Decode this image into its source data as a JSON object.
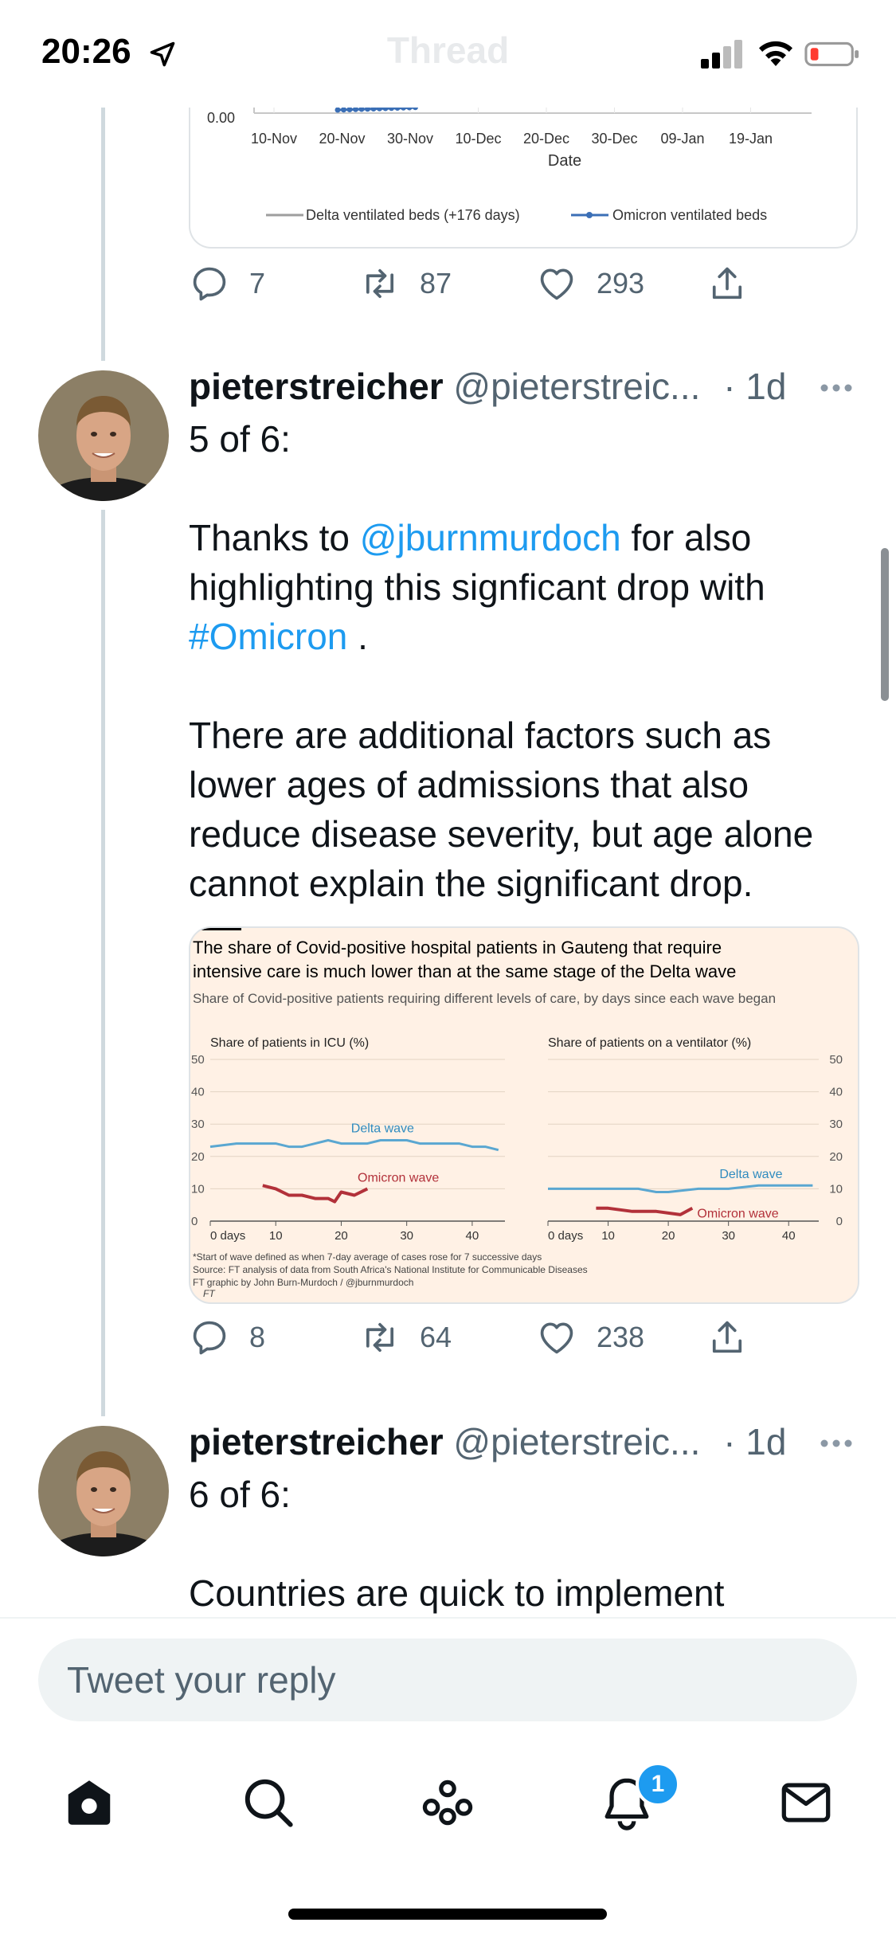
{
  "status_bar": {
    "time": "20:26"
  },
  "nav": {
    "title": "Thread"
  },
  "tweet_prev": {
    "chart": {
      "chart_data": {
        "type": "line",
        "xlabel": "Date",
        "x_ticks": [
          "10-Nov",
          "20-Nov",
          "30-Nov",
          "10-Dec",
          "20-Dec",
          "30-Dec",
          "09-Jan",
          "19-Jan"
        ],
        "y_tick_visible": "0.00",
        "series": [
          {
            "name": "Delta ventilated beds (+176 days)",
            "color": "#9e9e9e"
          },
          {
            "name": "Omicron ventilated beds",
            "color": "#3b6fb6"
          }
        ]
      }
    },
    "actions": {
      "replies": "7",
      "retweets": "87",
      "likes": "293"
    }
  },
  "tweet5": {
    "name": "pieterstreicher",
    "handle": "@pieterstreic...",
    "time": "· 1d",
    "text": {
      "line0": "5 of 6:",
      "line1a": "Thanks to ",
      "mention": "@jburnmurdoch",
      "line1b": " for also",
      "line2": "highlighting this signficant drop with",
      "hashtag": "#Omicron",
      "line3b": " .",
      "line4": "There are additional factors such as",
      "line5": "lower ages of admissions that also",
      "line6": "reduce disease severity, but age alone",
      "line7": "cannot explain the significant drop."
    },
    "chart": {
      "title_line1": "The share of Covid-positive hospital patients in Gauteng that require",
      "title_line2": "intensive care is much lower than at the same stage of the Delta wave",
      "subtitle": "Share of Covid-positive patients requiring different levels of care, by days since each wave began",
      "footnote1": "*Start of wave defined as when 7-day average of cases rose for 7 successive days",
      "footnote2": "Source: FT analysis of data from South Africa's National Institute for Communicable Diseases",
      "footnote3": "FT graphic by John Burn-Murdoch / @jburnmurdoch",
      "footnote4": "FT",
      "chart_data": [
        {
          "type": "line",
          "title": "Share of patients in ICU (%)",
          "ylim": [
            0,
            50
          ],
          "y_ticks": [
            "0",
            "10",
            "20",
            "30",
            "40",
            "50"
          ],
          "x_ticks": [
            "0 days",
            "10",
            "20",
            "30",
            "40"
          ],
          "series": [
            {
              "name": "Delta wave",
              "color": "#5aa7d1",
              "x": [
                0,
                4,
                8,
                10,
                12,
                14,
                16,
                18,
                20,
                22,
                24,
                26,
                28,
                30,
                32,
                34,
                36,
                38,
                40,
                42,
                44
              ],
              "values": [
                23,
                24,
                24,
                24,
                23,
                23,
                24,
                25,
                24,
                24,
                24,
                25,
                25,
                25,
                24,
                24,
                24,
                24,
                23,
                23,
                22
              ]
            },
            {
              "name": "Omicron wave",
              "color": "#b2313a",
              "x": [
                8,
                10,
                12,
                14,
                16,
                18,
                19,
                20,
                22,
                24
              ],
              "values": [
                11,
                10,
                8,
                8,
                7,
                7,
                6,
                9,
                8,
                10
              ]
            }
          ]
        },
        {
          "type": "line",
          "title": "Share of patients on a ventilator (%)",
          "ylim": [
            0,
            50
          ],
          "y_ticks": [
            "0",
            "10",
            "20",
            "30",
            "40",
            "50"
          ],
          "x_ticks": [
            "0 days",
            "10",
            "20",
            "30",
            "40"
          ],
          "series": [
            {
              "name": "Delta wave",
              "color": "#5aa7d1",
              "x": [
                0,
                5,
                10,
                15,
                18,
                20,
                25,
                30,
                35,
                40,
                44
              ],
              "values": [
                10,
                10,
                10,
                10,
                9,
                9,
                10,
                10,
                11,
                11,
                11
              ]
            },
            {
              "name": "Omicron wave",
              "color": "#b2313a",
              "x": [
                8,
                10,
                14,
                18,
                22,
                24
              ],
              "values": [
                4,
                4,
                3,
                3,
                2,
                4
              ]
            }
          ]
        }
      ]
    },
    "actions": {
      "replies": "8",
      "retweets": "64",
      "likes": "238"
    }
  },
  "tweet6": {
    "name": "pieterstreicher",
    "handle": "@pieterstreic...",
    "time": "· 1d",
    "text": {
      "line0": "6 of 6:",
      "line1": "Countries are quick to implement"
    }
  },
  "reply": {
    "placeholder": "Tweet your reply"
  },
  "tabs": {
    "notifications_badge": "1"
  },
  "colors": {
    "accent": "#1d9bf0",
    "muted": "#536471",
    "ft_bg": "#fff1e5"
  }
}
